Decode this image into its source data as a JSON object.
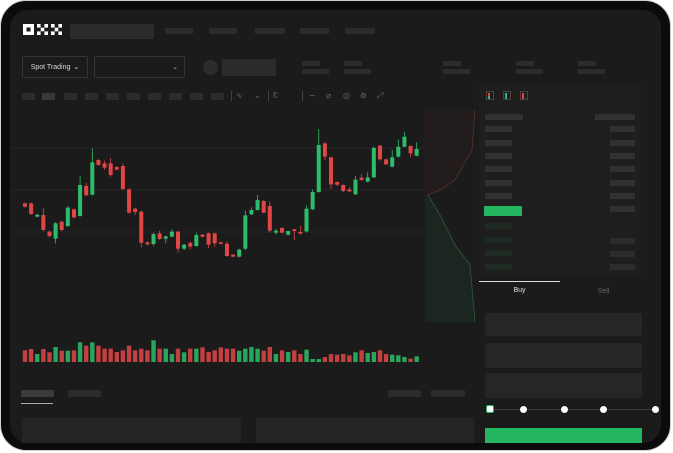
{
  "header": {
    "logo": "OKX",
    "market_selector": {
      "label": "Spot Trading",
      "icon": "chevron-down-icon"
    },
    "pair_dropdown": {
      "icon": "chevron-down-icon"
    }
  },
  "chart_toolbar": {
    "icons": [
      "indicator-icon",
      "chart-type-icon",
      "layout-icon",
      "line-tool-icon",
      "ruler-icon",
      "camera-icon",
      "settings-icon",
      "fullscreen-icon"
    ]
  },
  "orderbook": {
    "view_icons": [
      "both-sides-icon",
      "bids-only-icon",
      "asks-only-icon"
    ]
  },
  "trade_form": {
    "tabs": [
      {
        "label": "Buy",
        "active": true
      },
      {
        "label": "Sell",
        "active": false
      }
    ],
    "slider_level": 0
  },
  "colors": {
    "up": "#2dbd6a",
    "down": "#e04646",
    "buy_button": "#25b760",
    "background": "#1b1b1b"
  },
  "chart_data": {
    "type": "candlestick",
    "grid": true,
    "candles": [
      [
        20,
        20.3,
        18.7,
        19
      ],
      [
        20,
        20.3,
        16.5,
        16.8
      ],
      [
        16,
        16.8,
        15.8,
        16.6
      ],
      [
        16.5,
        18.5,
        11.6,
        12
      ],
      [
        11.5,
        11.8,
        9.7,
        10.2
      ],
      [
        9.4,
        14.4,
        8,
        14
      ],
      [
        14.5,
        14.8,
        11.6,
        12
      ],
      [
        13.2,
        19.2,
        12.9,
        18.7
      ],
      [
        18.2,
        18.5,
        15.4,
        15.8
      ],
      [
        16.2,
        28.2,
        16,
        25.5
      ],
      [
        25.2,
        26.2,
        22.2,
        22.4
      ],
      [
        22.6,
        36.5,
        22.4,
        32.3
      ],
      [
        33,
        33.3,
        31.3,
        31.5
      ],
      [
        32,
        32.8,
        30,
        30.7
      ],
      [
        32,
        33.6,
        28,
        28.5
      ],
      [
        30.9,
        31.1,
        29.9,
        30.1
      ],
      [
        31.2,
        32,
        24,
        24.3
      ],
      [
        24.2,
        24.5,
        16.9,
        17.2
      ],
      [
        18.4,
        18.7,
        16.5,
        17.4
      ],
      [
        17.5,
        17.8,
        6.8,
        8.2
      ],
      [
        8.3,
        8.6,
        7.4,
        7.7
      ],
      [
        7.8,
        11.2,
        7.2,
        10.8
      ],
      [
        11,
        11.8,
        9,
        9.3
      ],
      [
        9.4,
        10.3,
        8,
        10.1
      ],
      [
        10,
        12.2,
        9.8,
        11.5
      ],
      [
        11.5,
        11.7,
        5.2,
        6.4
      ],
      [
        6.4,
        7.8,
        6,
        7.6
      ],
      [
        8.1,
        8.6,
        6.2,
        7
      ],
      [
        7.2,
        11.2,
        7,
        10.5
      ],
      [
        10.6,
        10.8,
        9.8,
        10
      ],
      [
        11,
        11.2,
        6.6,
        7.6
      ],
      [
        11,
        11.2,
        7,
        8
      ],
      [
        8.3,
        8.5,
        7.7,
        7.9
      ],
      [
        7.9,
        8.6,
        4,
        4.2
      ],
      [
        4.6,
        4.8,
        3.8,
        4
      ],
      [
        4,
        6.4,
        3.8,
        6.1
      ],
      [
        6.4,
        17.8,
        6,
        16.4
      ],
      [
        16.7,
        18.8,
        16.5,
        18
      ],
      [
        18,
        22.5,
        17.8,
        21
      ],
      [
        20.7,
        21,
        17,
        17.2
      ],
      [
        19.2,
        20.6,
        11.2,
        11.8
      ],
      [
        11.2,
        12.4,
        10.6,
        11.8
      ],
      [
        12.6,
        12.8,
        11,
        11.2
      ],
      [
        10.6,
        11.8,
        10.4,
        11.7
      ],
      [
        12.2,
        12.4,
        9,
        11.7
      ],
      [
        11.4,
        13.2,
        10.7,
        10.9
      ],
      [
        11.6,
        19.4,
        11.2,
        18.4
      ],
      [
        18.2,
        24.2,
        18,
        23.4
      ],
      [
        23.4,
        42.3,
        23.2,
        37.5
      ],
      [
        38,
        38.3,
        33,
        34
      ],
      [
        33.8,
        34,
        24.3,
        25.7
      ],
      [
        26.4,
        26.6,
        25.2,
        25.6
      ],
      [
        25.5,
        25.7,
        23.4,
        23.7
      ],
      [
        24.2,
        24.8,
        23.4,
        23.6
      ],
      [
        22.7,
        28.2,
        22.5,
        27.1
      ],
      [
        27.7,
        28.8,
        26.8,
        27
      ],
      [
        26.5,
        29.4,
        26.3,
        27.8
      ],
      [
        27.8,
        37,
        27.6,
        36.6
      ],
      [
        37.3,
        37.5,
        32.8,
        33.2
      ],
      [
        33.2,
        33.4,
        31.5,
        31.7
      ],
      [
        31,
        36,
        30.8,
        33.8
      ],
      [
        34,
        39.2,
        33.8,
        37
      ],
      [
        37,
        41.4,
        36.8,
        40
      ],
      [
        37.2,
        37.4,
        33.8,
        35
      ],
      [
        34.3,
        38.3,
        34.1,
        36.3
      ]
    ],
    "candle_format": [
      "open",
      "high",
      "low",
      "close"
    ],
    "volume": [
      35,
      39,
      24,
      39,
      29,
      45,
      34,
      34,
      35,
      59,
      49,
      59,
      49,
      40,
      40,
      30,
      35,
      49,
      35,
      40,
      35,
      65,
      40,
      40,
      24,
      40,
      29,
      40,
      40,
      44,
      30,
      35,
      44,
      40,
      40,
      34,
      40,
      45,
      40,
      34,
      45,
      24,
      35,
      30,
      35,
      24,
      37,
      9,
      9,
      15,
      24,
      22,
      24,
      20,
      29,
      35,
      27,
      30,
      35,
      24,
      22,
      20,
      15,
      10,
      17
    ]
  }
}
